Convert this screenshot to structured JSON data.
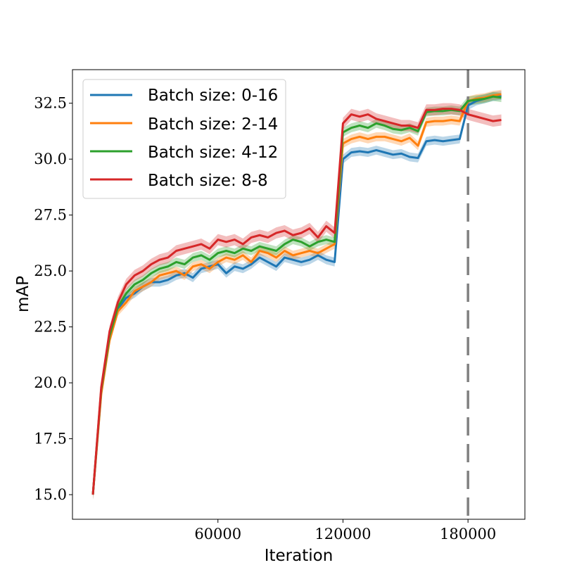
{
  "chart_data": {
    "type": "line",
    "title": "",
    "xlabel": "Iteration",
    "ylabel": "mAP",
    "xlim": [
      -9800,
      207300
    ],
    "ylim": [
      13.9,
      34.0
    ],
    "xticks": [
      60000,
      120000,
      180000
    ],
    "xtick_labels": [
      "60000",
      "120000",
      "180000"
    ],
    "yticks": [
      15.0,
      17.5,
      20.0,
      22.5,
      25.0,
      27.5,
      30.0,
      32.5
    ],
    "ytick_labels": [
      "15.0",
      "17.5",
      "20.0",
      "22.5",
      "25.0",
      "27.5",
      "30.0",
      "32.5"
    ],
    "grid": false,
    "legend_position": "top-left",
    "vertical_line": {
      "x": 180000,
      "style": "dashed",
      "color": "#808080"
    },
    "x": [
      0,
      4000,
      8000,
      12000,
      16000,
      20000,
      24000,
      28000,
      32000,
      36000,
      40000,
      44000,
      48000,
      52000,
      56000,
      60000,
      64000,
      68000,
      72000,
      76000,
      80000,
      84000,
      88000,
      92000,
      96000,
      100000,
      104000,
      108000,
      112000,
      116000,
      120000,
      124000,
      128000,
      132000,
      136000,
      140000,
      144000,
      148000,
      152000,
      156000,
      160000,
      164000,
      168000,
      172000,
      176000,
      180000,
      184000,
      188000,
      192000,
      196000
    ],
    "series": [
      {
        "name": "Batch size: 0-16",
        "color": "#1f77b4",
        "band": 0.2,
        "values": [
          15.0,
          19.6,
          22.0,
          23.3,
          23.8,
          24.0,
          24.3,
          24.5,
          24.5,
          24.6,
          24.8,
          24.9,
          24.7,
          25.1,
          25.2,
          25.3,
          24.9,
          25.2,
          25.1,
          25.3,
          25.6,
          25.4,
          25.2,
          25.6,
          25.5,
          25.4,
          25.5,
          25.7,
          25.5,
          25.4,
          30.0,
          30.3,
          30.35,
          30.3,
          30.4,
          30.3,
          30.2,
          30.25,
          30.1,
          30.05,
          30.8,
          30.85,
          30.8,
          30.85,
          30.9,
          32.4,
          32.6,
          32.7,
          32.8,
          32.85
        ]
      },
      {
        "name": "Batch size: 2-14",
        "color": "#ff7f0e",
        "band": 0.2,
        "values": [
          15.0,
          19.5,
          21.9,
          23.2,
          23.6,
          24.1,
          24.3,
          24.5,
          24.8,
          24.9,
          25.0,
          24.8,
          25.2,
          25.3,
          25.1,
          25.4,
          25.6,
          25.5,
          25.7,
          25.4,
          25.9,
          25.8,
          25.6,
          25.9,
          25.7,
          25.8,
          25.9,
          25.8,
          26.0,
          26.2,
          30.7,
          30.9,
          31.0,
          30.9,
          31.0,
          31.0,
          30.9,
          30.8,
          30.95,
          30.6,
          31.65,
          31.7,
          31.7,
          31.75,
          31.7,
          32.6,
          32.7,
          32.75,
          32.85,
          32.9
        ]
      },
      {
        "name": "Batch size: 4-12",
        "color": "#2ca02c",
        "band": 0.2,
        "values": [
          15.0,
          19.7,
          22.1,
          23.4,
          24.0,
          24.4,
          24.6,
          24.9,
          25.1,
          25.2,
          25.4,
          25.3,
          25.6,
          25.7,
          25.5,
          25.8,
          25.9,
          25.8,
          26.0,
          25.9,
          26.1,
          26.0,
          25.9,
          26.2,
          26.4,
          26.3,
          26.1,
          26.3,
          26.4,
          26.3,
          31.2,
          31.4,
          31.5,
          31.4,
          31.6,
          31.5,
          31.35,
          31.3,
          31.4,
          31.25,
          32.1,
          32.15,
          32.15,
          32.2,
          32.15,
          32.6,
          32.65,
          32.7,
          32.8,
          32.75
        ]
      },
      {
        "name": "Batch size: 8-8",
        "color": "#d62728",
        "band": 0.25,
        "values": [
          15.0,
          19.8,
          22.3,
          23.6,
          24.4,
          24.8,
          25.0,
          25.3,
          25.5,
          25.6,
          25.9,
          26.0,
          26.1,
          26.2,
          26.0,
          26.4,
          26.3,
          26.4,
          26.2,
          26.5,
          26.6,
          26.5,
          26.7,
          26.8,
          26.6,
          26.7,
          26.9,
          26.5,
          27.0,
          26.7,
          31.6,
          32.0,
          31.9,
          32.0,
          31.8,
          31.7,
          31.6,
          31.5,
          31.5,
          31.4,
          32.2,
          32.2,
          32.25,
          32.25,
          32.2,
          32.0,
          31.9,
          31.8,
          31.7,
          31.75
        ]
      }
    ]
  }
}
